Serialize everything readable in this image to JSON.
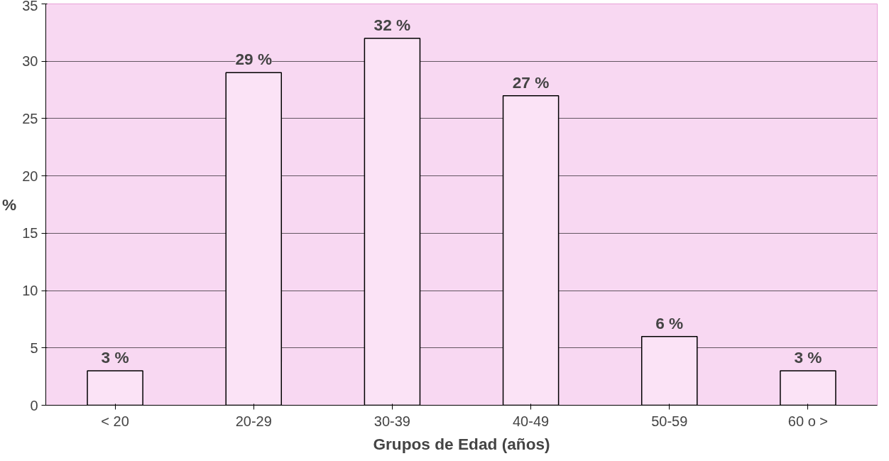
{
  "chart_data": {
    "type": "bar",
    "xlabel": "Grupos de Edad (años)",
    "ylabel": "%",
    "categories": [
      "< 20",
      "20-29",
      "30-39",
      "40-49",
      "50-59",
      "60 o >"
    ],
    "values": [
      3,
      29,
      32,
      27,
      6,
      3
    ],
    "value_labels": [
      "3 %",
      "29 %",
      "32 %",
      "27 %",
      "6 %",
      "3 %"
    ],
    "color": "#fbe3f6",
    "ylim": [
      0,
      35
    ],
    "yticks": [
      0,
      5,
      10,
      15,
      20,
      25,
      30,
      35
    ],
    "grid": "y"
  }
}
